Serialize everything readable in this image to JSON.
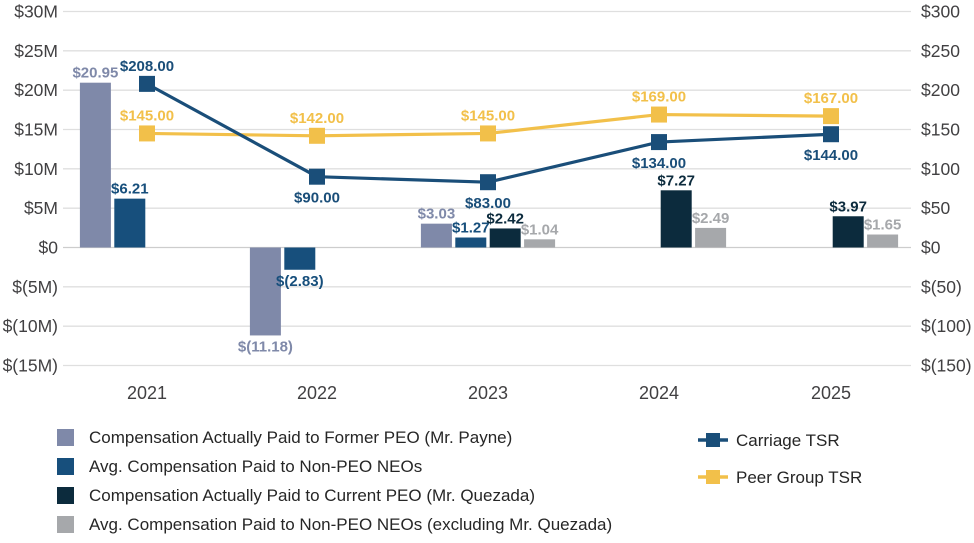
{
  "colors": {
    "former_peo": "#7F89A9",
    "non_peo_neos": "#174F7C",
    "current_peo": "#0C2B3D",
    "non_peo_neos_excl": "#A6A8AB",
    "carriage_tsr": "#1A4E79",
    "peer_group_tsr": "#F2C04A",
    "axis_text": "#414042",
    "grid_line": "#DFDFDF",
    "grid_zero_line": "#CDCDCD",
    "legend_text": "#262626"
  },
  "chart_data": {
    "type": "bar+line combo (pay versus performance)",
    "categories": [
      "2021",
      "2022",
      "2023",
      "2024",
      "2025"
    ],
    "left_axis": {
      "ticks": [
        "$30M",
        "$25M",
        "$20M",
        "$15M",
        "$10M",
        "$5M",
        "$0",
        "$(5M)",
        "$(10M)",
        "$(15M)"
      ],
      "max": 30,
      "min": -15,
      "step": 5,
      "units": "millions USD"
    },
    "right_axis": {
      "ticks": [
        "$300",
        "$250",
        "$200",
        "$150",
        "$100",
        "$50",
        "$0",
        "$(50)",
        "$(100)",
        "$(150)"
      ],
      "max": 300,
      "min": -150,
      "step": 50,
      "units": "USD"
    },
    "grid": true,
    "legend_position": "bottom",
    "bar_series": [
      {
        "name": "Compensation Actually Paid to Former PEO (Mr. Payne)",
        "slot": 0,
        "color_key": "former_peo",
        "values": [
          20.95,
          -11.18,
          3.03,
          null,
          null
        ],
        "labels": [
          "$20.95",
          "$(11.18)",
          "$3.03",
          null,
          null
        ]
      },
      {
        "name": "Avg. Compensation Paid to Non-PEO NEOs",
        "slot": 1,
        "color_key": "non_peo_neos",
        "values": [
          6.21,
          -2.83,
          1.27,
          null,
          null
        ],
        "labels": [
          "$6.21",
          "$(2.83)",
          "$1.27",
          null,
          null
        ]
      },
      {
        "name": "Compensation Actually Paid to Current PEO (Mr. Quezada)",
        "slot": 2,
        "color_key": "current_peo",
        "values": [
          null,
          null,
          2.42,
          7.27,
          3.97
        ],
        "labels": [
          null,
          null,
          "$2.42",
          "$7.27",
          "$3.97"
        ]
      },
      {
        "name": "Avg. Compensation Paid to Non-PEO NEOs (excluding Mr. Quezada)",
        "slot": 3,
        "color_key": "non_peo_neos_excl",
        "values": [
          null,
          null,
          1.04,
          2.49,
          1.65
        ],
        "labels": [
          null,
          null,
          "$1.04",
          "$2.49",
          "$1.65"
        ]
      }
    ],
    "line_series": [
      {
        "name": "Peer Group TSR",
        "color_key": "peer_group_tsr",
        "values": [
          145,
          142,
          145,
          169,
          167
        ],
        "labels": [
          "$145.00",
          "$142.00",
          "$145.00",
          "$169.00",
          "$167.00"
        ],
        "label_positions": [
          "above",
          "above",
          "above",
          "above",
          "above"
        ]
      },
      {
        "name": "Carriage TSR",
        "color_key": "carriage_tsr",
        "values": [
          208,
          90,
          83,
          134,
          144
        ],
        "labels": [
          "$208.00",
          "$90.00",
          "$83.00",
          "$134.00",
          "$144.00"
        ],
        "label_positions": [
          "above",
          "below",
          "below",
          "below",
          "below"
        ]
      }
    ]
  },
  "legend": {
    "bar_items": [
      {
        "label": "Compensation Actually Paid to Former PEO (Mr. Payne)",
        "color_key": "former_peo"
      },
      {
        "label": "Avg. Compensation Paid to Non-PEO NEOs",
        "color_key": "non_peo_neos"
      },
      {
        "label": "Compensation Actually Paid to Current PEO (Mr. Quezada)",
        "color_key": "current_peo"
      },
      {
        "label": "Avg. Compensation Paid to Non-PEO NEOs (excluding Mr. Quezada)",
        "color_key": "non_peo_neos_excl"
      }
    ],
    "line_items": [
      {
        "label": "Carriage TSR",
        "color_key": "carriage_tsr"
      },
      {
        "label": "Peer Group TSR",
        "color_key": "peer_group_tsr"
      }
    ]
  }
}
